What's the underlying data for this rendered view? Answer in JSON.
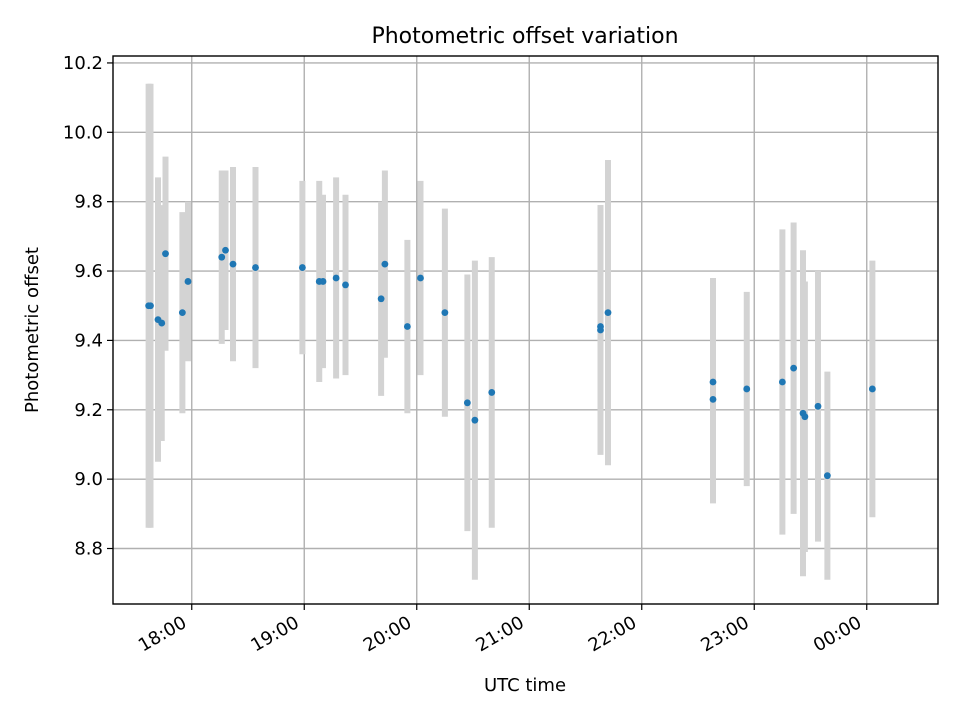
{
  "chart_data": {
    "type": "scatter",
    "title": "Photometric offset variation",
    "xlabel": "UTC time",
    "ylabel": "Photometric offset",
    "xlim": [
      "17:18",
      "00:38"
    ],
    "ylim": [
      8.64,
      10.22
    ],
    "grid": true,
    "x_ticks": [
      "18:00",
      "19:00",
      "20:00",
      "21:00",
      "22:00",
      "23:00",
      "00:00"
    ],
    "y_ticks": [
      "8.8",
      "9.0",
      "9.2",
      "9.4",
      "9.6",
      "9.8",
      "10.0",
      "10.2"
    ],
    "colors": {
      "marker": "#1f77b4",
      "errorbar": "#d3d3d3"
    },
    "points": [
      {
        "t": "17:37",
        "y": 9.5,
        "err": 0.64
      },
      {
        "t": "17:38",
        "y": 9.5,
        "err": 0.64
      },
      {
        "t": "17:42",
        "y": 9.46,
        "err": 0.41
      },
      {
        "t": "17:44",
        "y": 9.45,
        "err": 0.34
      },
      {
        "t": "17:46",
        "y": 9.65,
        "err": 0.28
      },
      {
        "t": "17:55",
        "y": 9.48,
        "err": 0.29
      },
      {
        "t": "17:58",
        "y": 9.57,
        "err": 0.23
      },
      {
        "t": "18:16",
        "y": 9.64,
        "err": 0.25
      },
      {
        "t": "18:18",
        "y": 9.66,
        "err": 0.23
      },
      {
        "t": "18:22",
        "y": 9.62,
        "err": 0.28
      },
      {
        "t": "18:34",
        "y": 9.61,
        "err": 0.29
      },
      {
        "t": "18:59",
        "y": 9.61,
        "err": 0.25
      },
      {
        "t": "19:08",
        "y": 9.57,
        "err": 0.29
      },
      {
        "t": "19:10",
        "y": 9.57,
        "err": 0.25
      },
      {
        "t": "19:17",
        "y": 9.58,
        "err": 0.29
      },
      {
        "t": "19:22",
        "y": 9.56,
        "err": 0.26
      },
      {
        "t": "19:41",
        "y": 9.52,
        "err": 0.28
      },
      {
        "t": "19:43",
        "y": 9.62,
        "err": 0.27
      },
      {
        "t": "19:55",
        "y": 9.44,
        "err": 0.25
      },
      {
        "t": "20:02",
        "y": 9.58,
        "err": 0.28
      },
      {
        "t": "20:15",
        "y": 9.48,
        "err": 0.3
      },
      {
        "t": "20:27",
        "y": 9.22,
        "err": 0.37
      },
      {
        "t": "20:31",
        "y": 9.17,
        "err": 0.46
      },
      {
        "t": "20:40",
        "y": 9.25,
        "err": 0.39
      },
      {
        "t": "21:38",
        "y": 9.44,
        "err": 0.35
      },
      {
        "t": "21:38",
        "y": 9.43,
        "err": 0.36
      },
      {
        "t": "21:42",
        "y": 9.48,
        "err": 0.44
      },
      {
        "t": "22:38",
        "y": 9.28,
        "err": 0.3
      },
      {
        "t": "22:38",
        "y": 9.23,
        "err": 0.3
      },
      {
        "t": "22:56",
        "y": 9.26,
        "err": 0.28
      },
      {
        "t": "23:15",
        "y": 9.28,
        "err": 0.44
      },
      {
        "t": "23:21",
        "y": 9.32,
        "err": 0.42
      },
      {
        "t": "23:26",
        "y": 9.19,
        "err": 0.47
      },
      {
        "t": "23:27",
        "y": 9.18,
        "err": 0.39
      },
      {
        "t": "23:34",
        "y": 9.21,
        "err": 0.39
      },
      {
        "t": "23:39",
        "y": 9.01,
        "err": 0.3
      },
      {
        "t": "00:03",
        "y": 9.26,
        "err": 0.37
      }
    ]
  }
}
